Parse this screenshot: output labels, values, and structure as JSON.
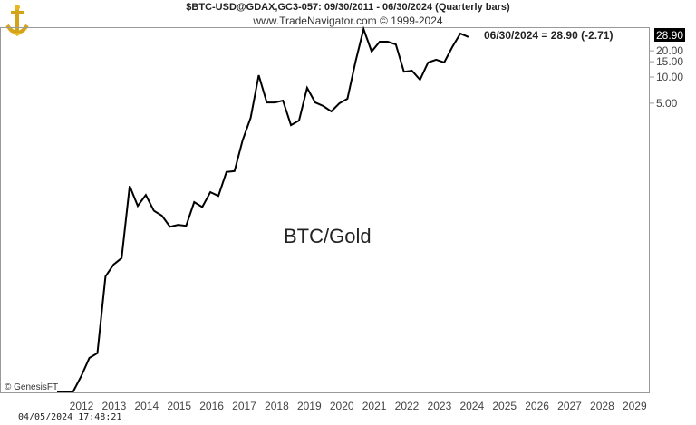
{
  "header": {
    "title": "$BTC-USD@GDAX,GC3-057:  09/30/2011 - 06/30/2024  (Quarterly bars)",
    "subtitle": "www.TradeNavigator.com © 1999-2024"
  },
  "footer": {
    "copyright": "© GenesisFT",
    "timestamp": "04/05/2024 17:48:21"
  },
  "chart_data": {
    "type": "line",
    "annotation": "BTC/Gold",
    "last_value_label": "06/30/2024 = 28.90 (-2.71)",
    "last_value_badge": "28.90",
    "y_scale": "log",
    "ylim": [
      0.0024,
      37
    ],
    "y_ticks": [
      "5.00",
      "10.00",
      "15.00",
      "20.00"
    ],
    "y_tick_values": [
      5,
      10,
      15,
      20
    ],
    "x_ticks": [
      "2012",
      "2013",
      "2014",
      "2015",
      "2016",
      "2017",
      "2018",
      "2019",
      "2020",
      "2021",
      "2022",
      "2023",
      "2024",
      "2025",
      "2026",
      "2027",
      "2028",
      "2029"
    ],
    "grid": false,
    "line_color": "#000000",
    "x_start": "09/30/2011",
    "x_end": "06/30/2024",
    "frequency": "quarterly",
    "values": [
      0.0024,
      0.0024,
      0.0024,
      0.00365,
      0.0059,
      0.0067,
      0.051,
      0.07,
      0.083,
      0.56,
      0.33,
      0.44,
      0.29,
      0.255,
      0.19,
      0.2,
      0.195,
      0.365,
      0.32,
      0.475,
      0.43,
      0.81,
      0.83,
      1.87,
      3.4,
      10.5,
      5.1,
      5.1,
      5.36,
      2.8,
      3.16,
      7.5,
      5.1,
      4.64,
      4.02,
      4.99,
      5.62,
      15.0,
      35.6,
      19.6,
      25.5,
      25.5,
      23.7,
      11.5,
      11.8,
      9.3,
      14.7,
      15.8,
      14.7,
      22.1,
      31.61,
      28.9
    ]
  }
}
